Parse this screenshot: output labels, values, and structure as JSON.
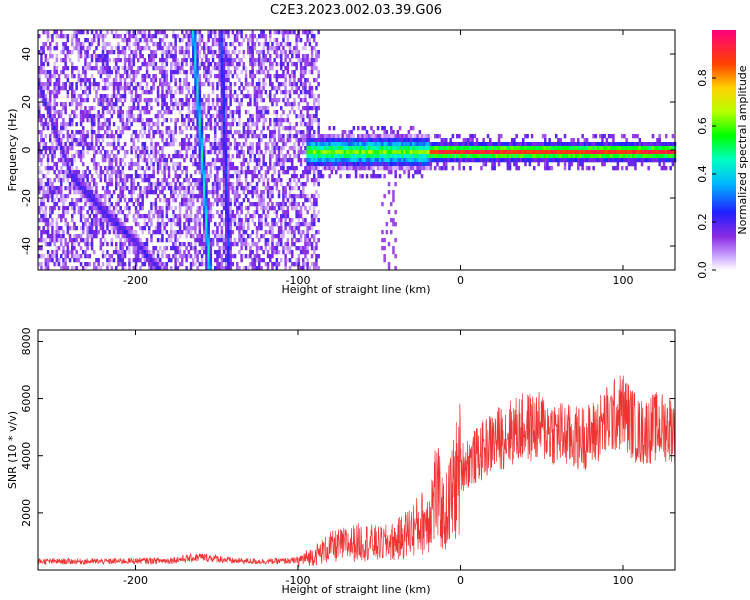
{
  "title": "C2E3.2023.002.03.39.G06",
  "chart_data": [
    {
      "type": "heatmap",
      "title": "C2E3.2023.002.03.39.G06",
      "xlabel": "Height of straight line (km)",
      "ylabel": "Frequency (Hz)",
      "xlim": [
        -260,
        132
      ],
      "ylim": [
        -50,
        50
      ],
      "x_ticks": [
        "-200",
        "-100",
        "0",
        "100"
      ],
      "y_ticks": [
        "40",
        "20",
        "0",
        "-20",
        "-40"
      ],
      "colorbar": {
        "label": "Normalized spectral amplitude",
        "range": [
          0,
          1
        ],
        "ticks": [
          "0.0",
          "0.2",
          "0.4",
          "0.6",
          "0.8"
        ]
      },
      "features": [
        {
          "description_type": "broadband scatter",
          "x_range": [
            -260,
            -88
          ],
          "y_range": [
            -50,
            50
          ],
          "amplitude": 0.12
        },
        {
          "description_type": "steep line",
          "x": [
            -165,
            -155
          ],
          "y": [
            50,
            -50
          ],
          "amplitude": 0.45
        },
        {
          "description_type": "steep line",
          "x": [
            -148,
            -143
          ],
          "y": [
            50,
            -50
          ],
          "amplitude": 0.25
        },
        {
          "description_type": "curved line",
          "x": [
            -260,
            -240,
            -220,
            -200,
            -185
          ],
          "y": [
            28,
            -10,
            -25,
            -38,
            -50
          ],
          "amplitude": 0.2
        },
        {
          "description_type": "carrier band",
          "x_range": [
            -95,
            132
          ],
          "y_center": 0,
          "amplitude": 0.85
        }
      ]
    },
    {
      "type": "line",
      "xlabel": "Height of straight line (km)",
      "ylabel": "SNR (10 * v/v)",
      "xlim": [
        -260,
        132
      ],
      "ylim": [
        0,
        8400
      ],
      "x_ticks": [
        "-200",
        "-100",
        "0",
        "100"
      ],
      "y_ticks": [
        "8000",
        "6000",
        "4000",
        "2000"
      ],
      "color": "#ee3333",
      "series": [
        {
          "x": [
            -260,
            -240,
            -220,
            -200,
            -180,
            -160,
            -150,
            -140,
            -120,
            -100,
            -90,
            -80,
            -70,
            -60,
            -50,
            -40,
            -30,
            -20,
            -15,
            -10,
            0,
            10,
            20,
            30,
            40,
            50,
            60,
            70,
            80,
            90,
            100,
            110,
            120,
            132
          ],
          "y": [
            300,
            300,
            300,
            320,
            330,
            450,
            400,
            320,
            300,
            330,
            500,
            800,
            900,
            1000,
            900,
            1000,
            1400,
            1800,
            2800,
            1800,
            3600,
            4000,
            4500,
            4800,
            5000,
            5000,
            4800,
            4600,
            4700,
            5200,
            5600,
            4800,
            5000,
            5000
          ]
        }
      ]
    }
  ]
}
